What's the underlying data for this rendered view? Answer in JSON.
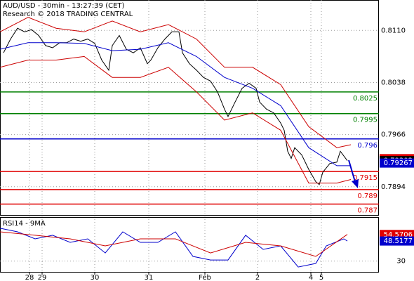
{
  "chart_data": [
    {
      "type": "line",
      "title": "AUD/USD - 30min - 13:27:39 (CET)",
      "subtitle": "Research © 2018 TRADING CENTRAL",
      "xlim": [
        0,
        108
      ],
      "ylim": [
        0.7854,
        0.8152
      ],
      "yticks": [
        {
          "value": 0.811,
          "label": "0.8110"
        },
        {
          "value": 0.8038,
          "label": "0.8038"
        },
        {
          "value": 0.7966,
          "label": "0.7966"
        },
        {
          "value": 0.7894,
          "label": "0.7894"
        }
      ],
      "xticks": [
        {
          "value": 8.4,
          "label": "28"
        },
        {
          "value": 12,
          "label": "29"
        },
        {
          "value": 27,
          "label": "30"
        },
        {
          "value": 42.4,
          "label": "31"
        },
        {
          "value": 58.4,
          "label": "Feb"
        },
        {
          "value": 73.4,
          "label": "2"
        },
        {
          "value": 88.6,
          "label": "4"
        },
        {
          "value": 91.6,
          "label": "5"
        }
      ],
      "grid": true,
      "series": [
        {
          "color": "#000000",
          "x": [
            1,
            3,
            5,
            7,
            9,
            11,
            13,
            15,
            17,
            19,
            21,
            23,
            25,
            27,
            29,
            31,
            32,
            34,
            36,
            38,
            40,
            42,
            43,
            45,
            47,
            49,
            51,
            52,
            54,
            56,
            58,
            60,
            62,
            64,
            65,
            67,
            69,
            71,
            73,
            74,
            76,
            78,
            80,
            81,
            82,
            83,
            84,
            86,
            88,
            90,
            91,
            92,
            94,
            96,
            97,
            99
          ],
          "values": [
            0.8079,
            0.8098,
            0.8113,
            0.8108,
            0.8111,
            0.8103,
            0.8089,
            0.8086,
            0.8093,
            0.8093,
            0.8098,
            0.8095,
            0.8098,
            0.8092,
            0.8069,
            0.8055,
            0.8089,
            0.8103,
            0.8084,
            0.8079,
            0.8086,
            0.8064,
            0.8069,
            0.8086,
            0.8098,
            0.8108,
            0.8108,
            0.8079,
            0.8064,
            0.8055,
            0.8045,
            0.804,
            0.8025,
            0.8001,
            0.7991,
            0.8011,
            0.803,
            0.8037,
            0.803,
            0.8011,
            0.8001,
            0.7996,
            0.7982,
            0.7972,
            0.7943,
            0.7933,
            0.7948,
            0.7938,
            0.7918,
            0.7901,
            0.7897,
            0.7914,
            0.7926,
            0.7928,
            0.7943,
            0.793
          ]
        },
        {
          "color": "#0000cc",
          "x": [
            0,
            8,
            16,
            24,
            32,
            40,
            48,
            56,
            64,
            72,
            80,
            88,
            96,
            100
          ],
          "values": [
            0.8084,
            0.8093,
            0.8093,
            0.8092,
            0.8082,
            0.8084,
            0.8093,
            0.8074,
            0.8045,
            0.803,
            0.8006,
            0.7948,
            0.7923,
            0.7923
          ]
        },
        {
          "color": "#cc0000",
          "x": [
            0,
            8,
            16,
            24,
            32,
            40,
            48,
            56,
            64,
            72,
            80,
            88,
            96,
            100
          ],
          "values": [
            0.8108,
            0.8128,
            0.8113,
            0.8108,
            0.8123,
            0.8108,
            0.8118,
            0.8098,
            0.8059,
            0.8059,
            0.8035,
            0.7977,
            0.7948,
            0.7952
          ]
        },
        {
          "color": "#cc0000",
          "x": [
            0,
            8,
            16,
            24,
            32,
            40,
            48,
            56,
            64,
            72,
            80,
            88,
            96,
            100
          ],
          "values": [
            0.8059,
            0.8069,
            0.8069,
            0.8074,
            0.8045,
            0.8045,
            0.8059,
            0.8025,
            0.7986,
            0.7996,
            0.7972,
            0.7899,
            0.7899,
            0.7904
          ]
        }
      ],
      "levels": [
        {
          "value": 0.8025,
          "color": "#008000"
        },
        {
          "value": 0.7995,
          "color": "#008000"
        },
        {
          "value": 0.796,
          "color": "#0000cc"
        },
        {
          "value": 0.7915,
          "color": "#e00000"
        },
        {
          "value": 0.789,
          "color": "#e00000"
        },
        {
          "value": 0.787,
          "color": "#e00000"
        }
      ],
      "price_tags": [
        {
          "value": 0.79328,
          "color": "#e00000"
        },
        {
          "value": 0.79302,
          "color": "#000000"
        },
        {
          "value": 0.79267,
          "color": "#0000cc"
        }
      ]
    },
    {
      "type": "line",
      "title": "RSI14 - 9MA",
      "xlim": [
        0,
        108
      ],
      "ylim": [
        20,
        70
      ],
      "yticks": [
        30
      ],
      "series": [
        {
          "color": "#0000cc",
          "x": [
            0,
            5,
            10,
            15,
            20,
            25,
            30,
            35,
            40,
            45,
            50,
            55,
            60,
            65,
            70,
            75,
            80,
            85,
            90,
            93,
            98,
            99
          ],
          "values": [
            60.3,
            57,
            50.5,
            53.8,
            47.3,
            50.5,
            37.5,
            57,
            47.3,
            47.3,
            57,
            34.3,
            31,
            31,
            53.8,
            40.8,
            44,
            24.5,
            27.8,
            44,
            50.5,
            48.5
          ]
        },
        {
          "color": "#cc0000",
          "x": [
            0,
            10,
            20,
            30,
            40,
            50,
            60,
            70,
            80,
            90,
            99
          ],
          "values": [
            57,
            53.8,
            50.5,
            44,
            50.5,
            50.5,
            37.5,
            47.3,
            44,
            34.3,
            54.6
          ]
        }
      ],
      "value_tags": [
        {
          "value": 54.5706,
          "color": "#e00000"
        },
        {
          "value": 48.5177,
          "color": "#0000cc"
        }
      ]
    }
  ]
}
